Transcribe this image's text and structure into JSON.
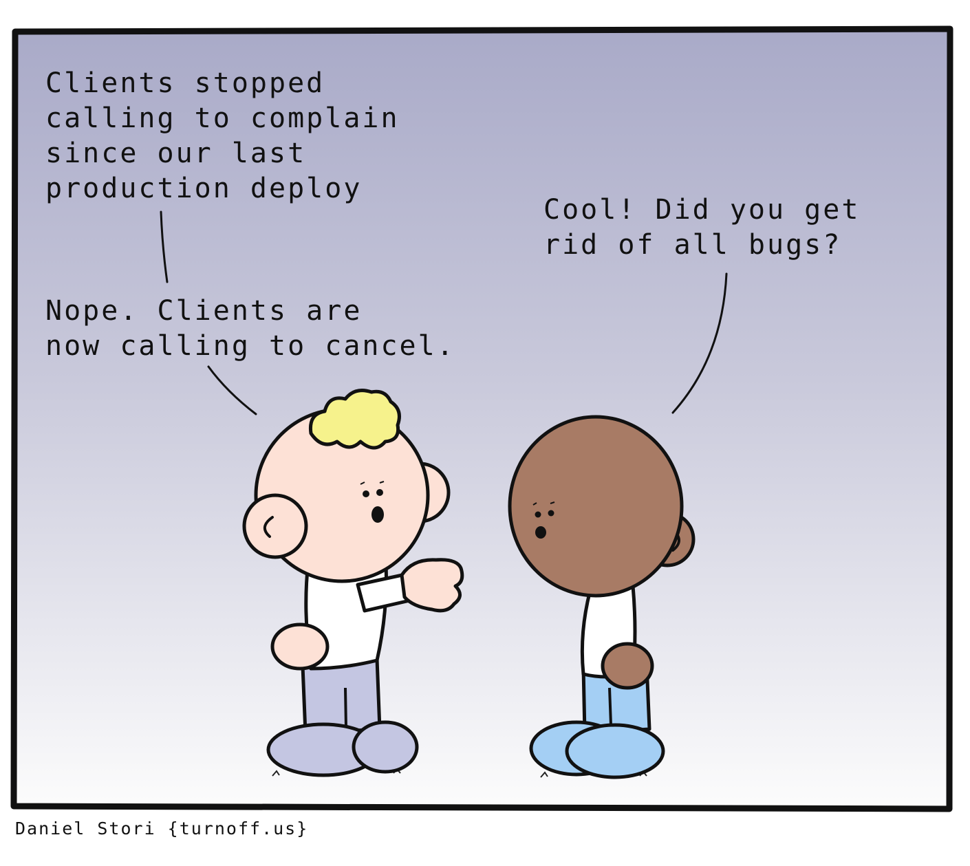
{
  "comic": {
    "dialogue": {
      "clients_stopped": "Clients stopped\ncalling to complain\nsince our last\nproduction deploy",
      "nope": "Nope. Clients are\nnow calling to cancel.",
      "cool": "Cool! Did you get\nrid of all bugs?"
    },
    "credit": "Daniel Stori {turnoff.us}",
    "colors": {
      "panel_top": "#a9aac8",
      "panel_bottom": "#fcfcfc",
      "border": "#111111",
      "light_skin": "#fde1d6",
      "dark_skin": "#a87b65",
      "hair": "#f6f28c",
      "shirt": "#ffffff",
      "left_pants": "#c4c6e2",
      "right_pants": "#a4cff4"
    }
  }
}
